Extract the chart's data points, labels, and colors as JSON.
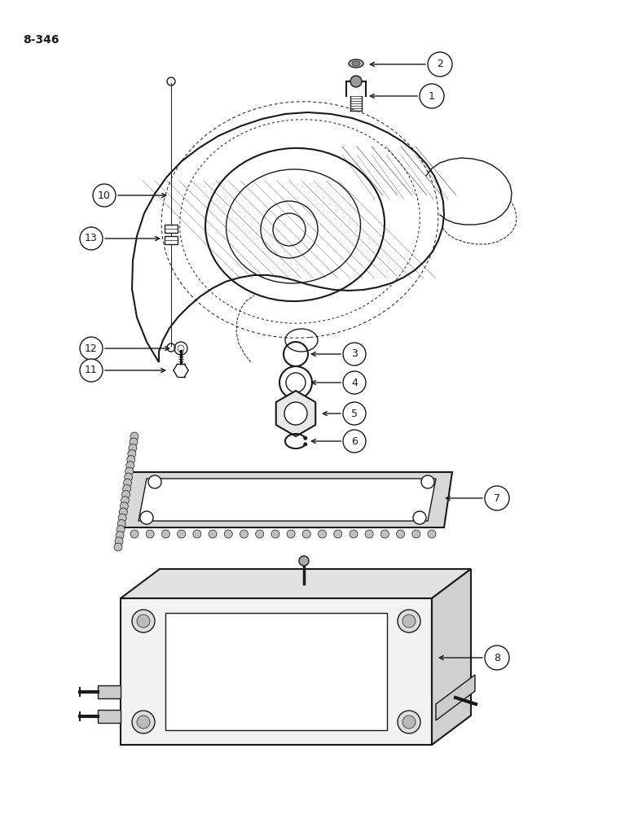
{
  "page_label": "8-346",
  "background_color": "#ffffff",
  "line_color": "#1a1a1a",
  "figsize": [
    7.72,
    10.0
  ],
  "dpi": 100
}
